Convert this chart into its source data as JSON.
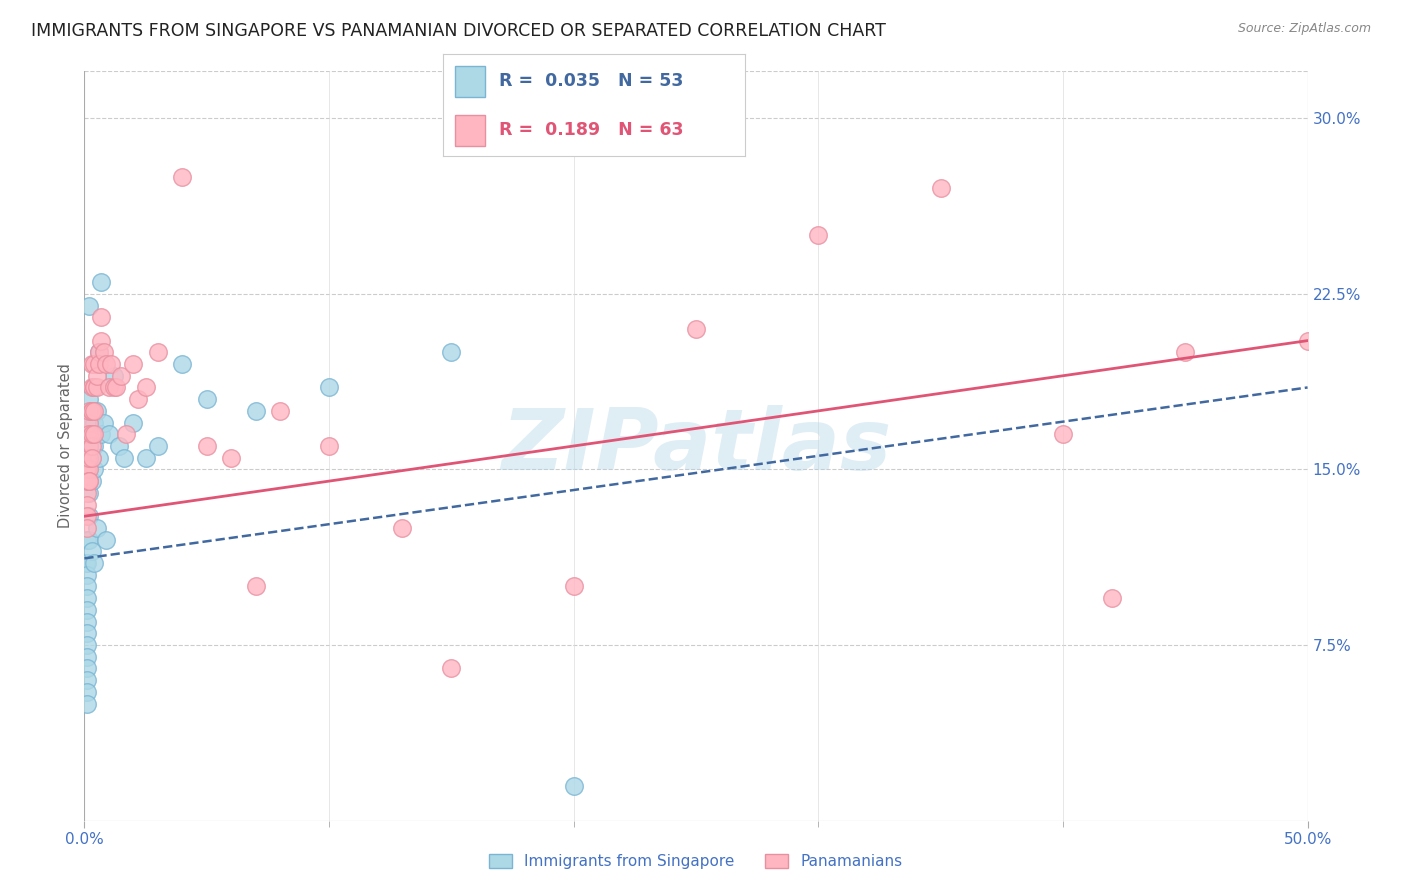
{
  "title": "IMMIGRANTS FROM SINGAPORE VS PANAMANIAN DIVORCED OR SEPARATED CORRELATION CHART",
  "source": "Source: ZipAtlas.com",
  "ylabel": "Divorced or Separated",
  "xlim": [
    0.0,
    0.5
  ],
  "ylim": [
    0.0,
    0.32
  ],
  "xtick_positions": [
    0.0,
    0.5
  ],
  "xticklabels": [
    "0.0%",
    "50.0%"
  ],
  "xtick_minor_positions": [
    0.1,
    0.2,
    0.3,
    0.4
  ],
  "yticks_right": [
    0.075,
    0.15,
    0.225,
    0.3
  ],
  "ytick_labels_right": [
    "7.5%",
    "15.0%",
    "22.5%",
    "30.0%"
  ],
  "grid_color": "#cccccc",
  "background_color": "#ffffff",
  "watermark": "ZIPatlas",
  "watermark_color": "#b0d4e8",
  "series": [
    {
      "name": "Immigrants from Singapore",
      "R": "0.035",
      "N": "53",
      "marker_fill": "#add8e6",
      "marker_edge": "#7ab5d4",
      "trend_color": "#4169a0",
      "trend_style": "--",
      "x": [
        0.0005,
        0.001,
        0.001,
        0.001,
        0.001,
        0.001,
        0.001,
        0.001,
        0.001,
        0.001,
        0.001,
        0.001,
        0.001,
        0.001,
        0.001,
        0.002,
        0.002,
        0.002,
        0.002,
        0.002,
        0.002,
        0.002,
        0.002,
        0.003,
        0.003,
        0.003,
        0.003,
        0.003,
        0.004,
        0.004,
        0.004,
        0.004,
        0.005,
        0.005,
        0.006,
        0.006,
        0.007,
        0.007,
        0.008,
        0.009,
        0.01,
        0.012,
        0.014,
        0.016,
        0.02,
        0.025,
        0.03,
        0.04,
        0.05,
        0.07,
        0.1,
        0.15,
        0.2
      ],
      "y": [
        0.11,
        0.12,
        0.11,
        0.105,
        0.1,
        0.095,
        0.09,
        0.085,
        0.08,
        0.075,
        0.07,
        0.065,
        0.06,
        0.055,
        0.05,
        0.22,
        0.18,
        0.17,
        0.16,
        0.15,
        0.14,
        0.13,
        0.12,
        0.175,
        0.165,
        0.155,
        0.145,
        0.115,
        0.17,
        0.16,
        0.15,
        0.11,
        0.175,
        0.125,
        0.2,
        0.155,
        0.23,
        0.165,
        0.17,
        0.12,
        0.165,
        0.19,
        0.16,
        0.155,
        0.17,
        0.155,
        0.16,
        0.195,
        0.18,
        0.175,
        0.185,
        0.2,
        0.015
      ],
      "trend_x0": 0.0,
      "trend_y0": 0.112,
      "trend_x1": 0.5,
      "trend_y1": 0.185
    },
    {
      "name": "Panamanians",
      "R": "0.189",
      "N": "63",
      "marker_fill": "#ffb6c1",
      "marker_edge": "#e890a0",
      "trend_color": "#e05575",
      "trend_style": "-",
      "x": [
        0.0005,
        0.001,
        0.001,
        0.001,
        0.001,
        0.001,
        0.001,
        0.001,
        0.001,
        0.002,
        0.002,
        0.002,
        0.002,
        0.002,
        0.002,
        0.002,
        0.002,
        0.003,
        0.003,
        0.003,
        0.003,
        0.003,
        0.003,
        0.003,
        0.004,
        0.004,
        0.004,
        0.004,
        0.004,
        0.005,
        0.005,
        0.006,
        0.006,
        0.007,
        0.007,
        0.008,
        0.009,
        0.01,
        0.011,
        0.012,
        0.013,
        0.015,
        0.017,
        0.02,
        0.022,
        0.025,
        0.03,
        0.04,
        0.05,
        0.06,
        0.07,
        0.08,
        0.1,
        0.13,
        0.15,
        0.2,
        0.25,
        0.3,
        0.35,
        0.4,
        0.42,
        0.45,
        0.5
      ],
      "y": [
        0.15,
        0.14,
        0.135,
        0.13,
        0.125,
        0.15,
        0.155,
        0.145,
        0.165,
        0.15,
        0.145,
        0.16,
        0.155,
        0.17,
        0.175,
        0.165,
        0.145,
        0.16,
        0.155,
        0.175,
        0.185,
        0.195,
        0.175,
        0.165,
        0.185,
        0.175,
        0.195,
        0.185,
        0.165,
        0.185,
        0.19,
        0.2,
        0.195,
        0.205,
        0.215,
        0.2,
        0.195,
        0.185,
        0.195,
        0.185,
        0.185,
        0.19,
        0.165,
        0.195,
        0.18,
        0.185,
        0.2,
        0.275,
        0.16,
        0.155,
        0.1,
        0.175,
        0.16,
        0.125,
        0.065,
        0.1,
        0.21,
        0.25,
        0.27,
        0.165,
        0.095,
        0.2,
        0.205
      ],
      "trend_x0": 0.0,
      "trend_y0": 0.13,
      "trend_x1": 0.5,
      "trend_y1": 0.205
    }
  ],
  "title_fontsize": 12.5,
  "axis_label_color": "#4472c4",
  "tick_color": "#4472c4",
  "tick_fontsize": 11
}
